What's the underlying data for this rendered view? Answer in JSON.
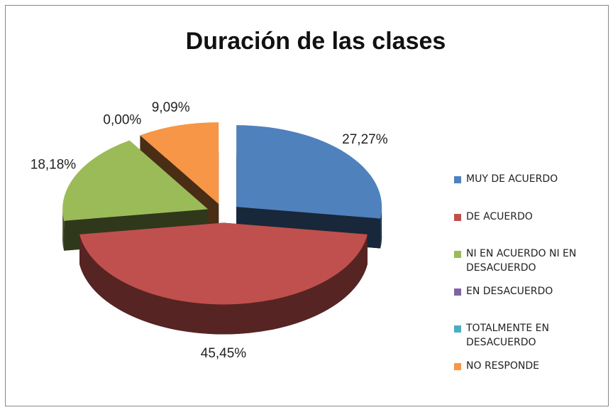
{
  "chart_data": {
    "type": "pie",
    "title": "Duración de las clases",
    "categories": [
      "MUY DE ACUERDO",
      "DE ACUERDO",
      "NI EN ACUERDO NI EN DESACUERDO",
      "EN DESACUERDO",
      "TOTALMENTE EN DESACUERDO",
      "NO RESPONDE"
    ],
    "values": [
      27.27,
      45.45,
      18.18,
      0,
      0,
      9.09
    ],
    "value_labels": [
      "27,27%",
      "45,45%",
      "18,18%",
      "0,00%",
      null,
      "9,09%"
    ],
    "colors": [
      "#4f81bd",
      "#c0504d",
      "#9bbb59",
      "#8064a2",
      "#4bacc6",
      "#f79646"
    ],
    "legend": "right"
  }
}
